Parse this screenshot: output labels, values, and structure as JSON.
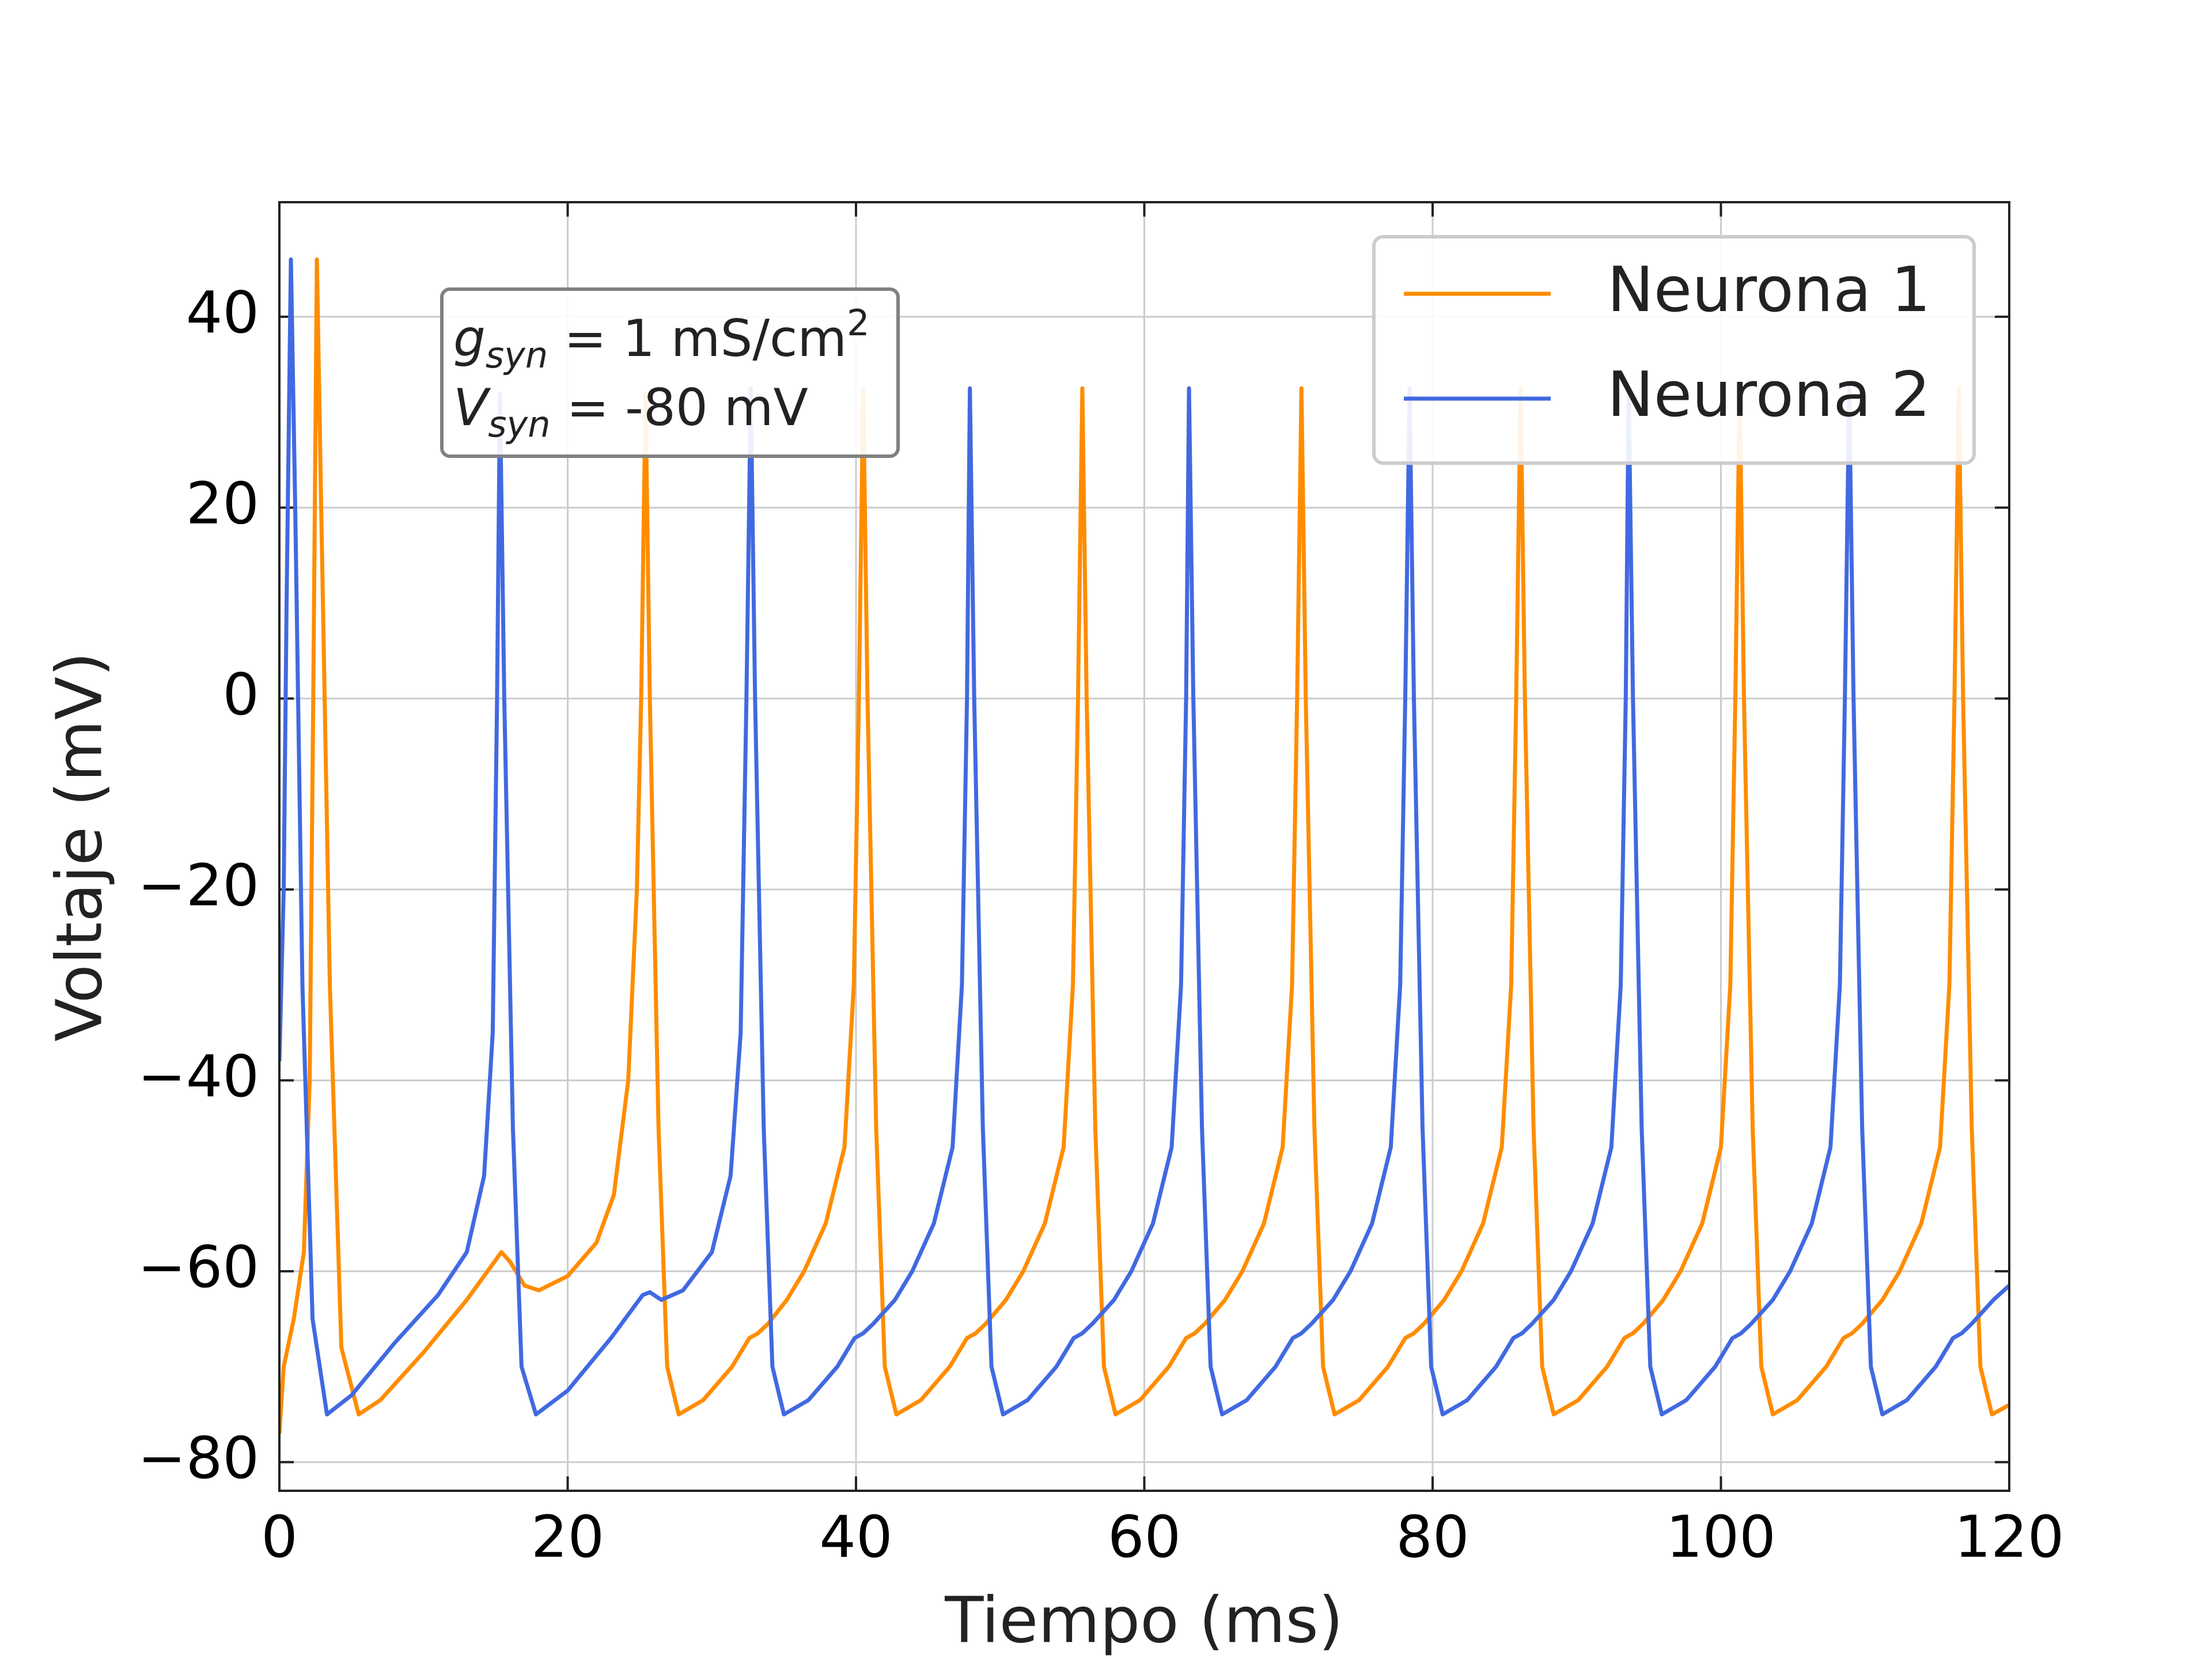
{
  "chart_data": {
    "type": "line",
    "xlabel": "Tiempo (ms)",
    "ylabel": "Voltaje (mV)",
    "xlim": [
      0,
      120
    ],
    "ylim": [
      -83,
      52
    ],
    "xticks": [
      0,
      20,
      40,
      60,
      80,
      100,
      120
    ],
    "yticks": [
      {
        "value": -80,
        "label": "−80"
      },
      {
        "value": -60,
        "label": "−60"
      },
      {
        "value": -40,
        "label": "−40"
      },
      {
        "value": -20,
        "label": "−20"
      },
      0,
      20,
      40
    ],
    "grid": true,
    "legend": "upper right",
    "annotation": [
      {
        "symbol": "g",
        "subscript": "syn",
        "text": " = 1 mS/cm",
        "superscript": "2"
      },
      {
        "symbol": "V",
        "subscript": "syn",
        "text": " = -80 mV"
      }
    ],
    "series": [
      {
        "name": "Neurona 1",
        "color": "#ff8c00",
        "x": [
          0,
          0.3,
          1,
          1.7,
          2.1,
          2.35,
          2.6,
          2.9,
          3.5,
          4.3,
          5.5,
          7,
          10,
          13,
          15.4,
          16,
          17,
          18,
          20,
          22,
          23.2,
          24.2,
          24.8,
          25.1,
          25.4,
          25.7,
          26.3,
          26.9,
          27.7,
          29.4,
          31.4,
          32.6,
          33.2,
          33.9,
          35.2,
          36.4,
          37.9,
          39.2,
          39.85,
          40.2,
          40.5,
          40.8,
          41.4,
          42,
          42.8,
          44.5,
          46.5,
          47.7,
          48.3,
          49,
          50.4,
          51.6,
          53.1,
          54.4,
          55.05,
          55.4,
          55.7,
          56,
          56.6,
          57.2,
          58,
          59.7,
          61.7,
          62.9,
          63.5,
          64.2,
          65.6,
          66.8,
          68.3,
          69.6,
          70.25,
          70.6,
          70.9,
          71.2,
          71.8,
          72.4,
          73.2,
          74.9,
          76.9,
          78.1,
          78.7,
          79.4,
          80.8,
          82,
          83.5,
          84.8,
          85.45,
          85.8,
          86.1,
          86.4,
          87,
          87.6,
          88.4,
          90.1,
          92.1,
          93.3,
          93.9,
          94.6,
          96,
          97.2,
          98.7,
          100,
          100.65,
          101,
          101.3,
          101.6,
          102.2,
          102.8,
          103.6,
          105.3,
          107.3,
          108.5,
          109.1,
          109.8,
          111.2,
          112.4,
          113.9,
          115.2,
          115.85,
          116.2,
          116.5,
          116.8,
          117.4,
          118,
          118.8,
          120
        ],
        "values": [
          -77,
          -70,
          -65,
          -58,
          -40,
          0,
          46,
          20,
          -30,
          -68,
          -75,
          -73.5,
          -68.5,
          -63,
          -58,
          -59,
          -61.5,
          -62,
          -60.5,
          -57,
          -52,
          -40,
          -20,
          0,
          32,
          0,
          -45,
          -70,
          -75,
          -73.5,
          -70,
          -67,
          -66.5,
          -65.5,
          -63,
          -60,
          -55,
          -47,
          -30,
          0,
          32.5,
          0,
          -45,
          -70,
          -75,
          -73.5,
          -70,
          -67,
          -66.5,
          -65.5,
          -63,
          -60,
          -55,
          -47,
          -30,
          0,
          32.5,
          0,
          -45,
          -70,
          -75,
          -73.5,
          -70,
          -67,
          -66.5,
          -65.5,
          -63,
          -60,
          -55,
          -47,
          -30,
          0,
          32.5,
          0,
          -45,
          -70,
          -75,
          -73.5,
          -70,
          -67,
          -66.5,
          -65.5,
          -63,
          -60,
          -55,
          -47,
          -30,
          0,
          32.5,
          0,
          -45,
          -70,
          -75,
          -73.5,
          -70,
          -67,
          -66.5,
          -65.5,
          -63,
          -60,
          -55,
          -47,
          -30,
          0,
          32.5,
          0,
          -45,
          -70,
          -75,
          -73.5,
          -70,
          -67,
          -66.5,
          -65.5,
          -63,
          -60,
          -55,
          -47,
          -30,
          0,
          32.5,
          0,
          -45,
          -70,
          -75,
          -74
        ]
      },
      {
        "name": "Neurona 2",
        "color": "#4169e1",
        "x": [
          0,
          0.3,
          0.5,
          0.8,
          1.1,
          1.6,
          2.3,
          3.3,
          5,
          8,
          11,
          13,
          14.2,
          14.8,
          15.1,
          15.3,
          15.6,
          16.2,
          16.8,
          17.8,
          20,
          23,
          25.2,
          25.7,
          26.5,
          28,
          30,
          31.3,
          32,
          32.4,
          32.7,
          33,
          33.6,
          34.2,
          35,
          36.7,
          38.7,
          39.9,
          40.5,
          41.2,
          42.7,
          43.9,
          45.4,
          46.7,
          47.35,
          47.7,
          47.9,
          48.2,
          48.8,
          49.4,
          50.2,
          51.9,
          53.9,
          55.1,
          55.7,
          56.4,
          57.9,
          59.1,
          60.6,
          61.9,
          62.55,
          62.9,
          63.1,
          63.4,
          64,
          64.6,
          65.4,
          67.1,
          69.1,
          70.3,
          70.9,
          71.6,
          73.1,
          74.3,
          75.8,
          77.1,
          77.75,
          78.1,
          78.4,
          78.7,
          79.3,
          79.9,
          80.7,
          82.4,
          84.4,
          85.6,
          86.2,
          86.9,
          88.4,
          89.6,
          91.1,
          92.4,
          93.05,
          93.4,
          93.6,
          93.9,
          94.5,
          95.1,
          95.9,
          97.6,
          99.6,
          100.8,
          101.4,
          102.1,
          103.6,
          104.8,
          106.3,
          107.6,
          108.25,
          108.6,
          108.9,
          109.2,
          109.8,
          110.4,
          111.2,
          112.9,
          114.9,
          116.1,
          116.7,
          117.4,
          118.9,
          120
        ],
        "values": [
          -38,
          -20,
          10,
          46,
          20,
          -30,
          -65,
          -75,
          -73,
          -67.5,
          -62.5,
          -58,
          -50,
          -35,
          0,
          32,
          0,
          -45,
          -70,
          -75,
          -72.5,
          -67,
          -62.5,
          -62.2,
          -63,
          -62,
          -58,
          -50,
          -35,
          0,
          32.5,
          0,
          -45,
          -70,
          -75,
          -73.5,
          -70,
          -67,
          -66.5,
          -65.5,
          -63,
          -60,
          -55,
          -47,
          -30,
          0,
          32.5,
          0,
          -45,
          -70,
          -75,
          -73.5,
          -70,
          -67,
          -66.5,
          -65.5,
          -63,
          -60,
          -55,
          -47,
          -30,
          0,
          32.5,
          0,
          -45,
          -70,
          -75,
          -73.5,
          -70,
          -67,
          -66.5,
          -65.5,
          -63,
          -60,
          -55,
          -47,
          -30,
          0,
          32.5,
          0,
          -45,
          -70,
          -75,
          -73.5,
          -70,
          -67,
          -66.5,
          -65.5,
          -63,
          -60,
          -55,
          -47,
          -30,
          0,
          32.5,
          0,
          -45,
          -70,
          -75,
          -73.5,
          -70,
          -67,
          -66.5,
          -65.5,
          -63,
          -60,
          -55,
          -47,
          -30,
          0,
          32.5,
          0,
          -45,
          -70,
          -75,
          -73.5,
          -70,
          -67,
          -66.5,
          -65.5,
          -63,
          -61.5
        ]
      }
    ]
  }
}
